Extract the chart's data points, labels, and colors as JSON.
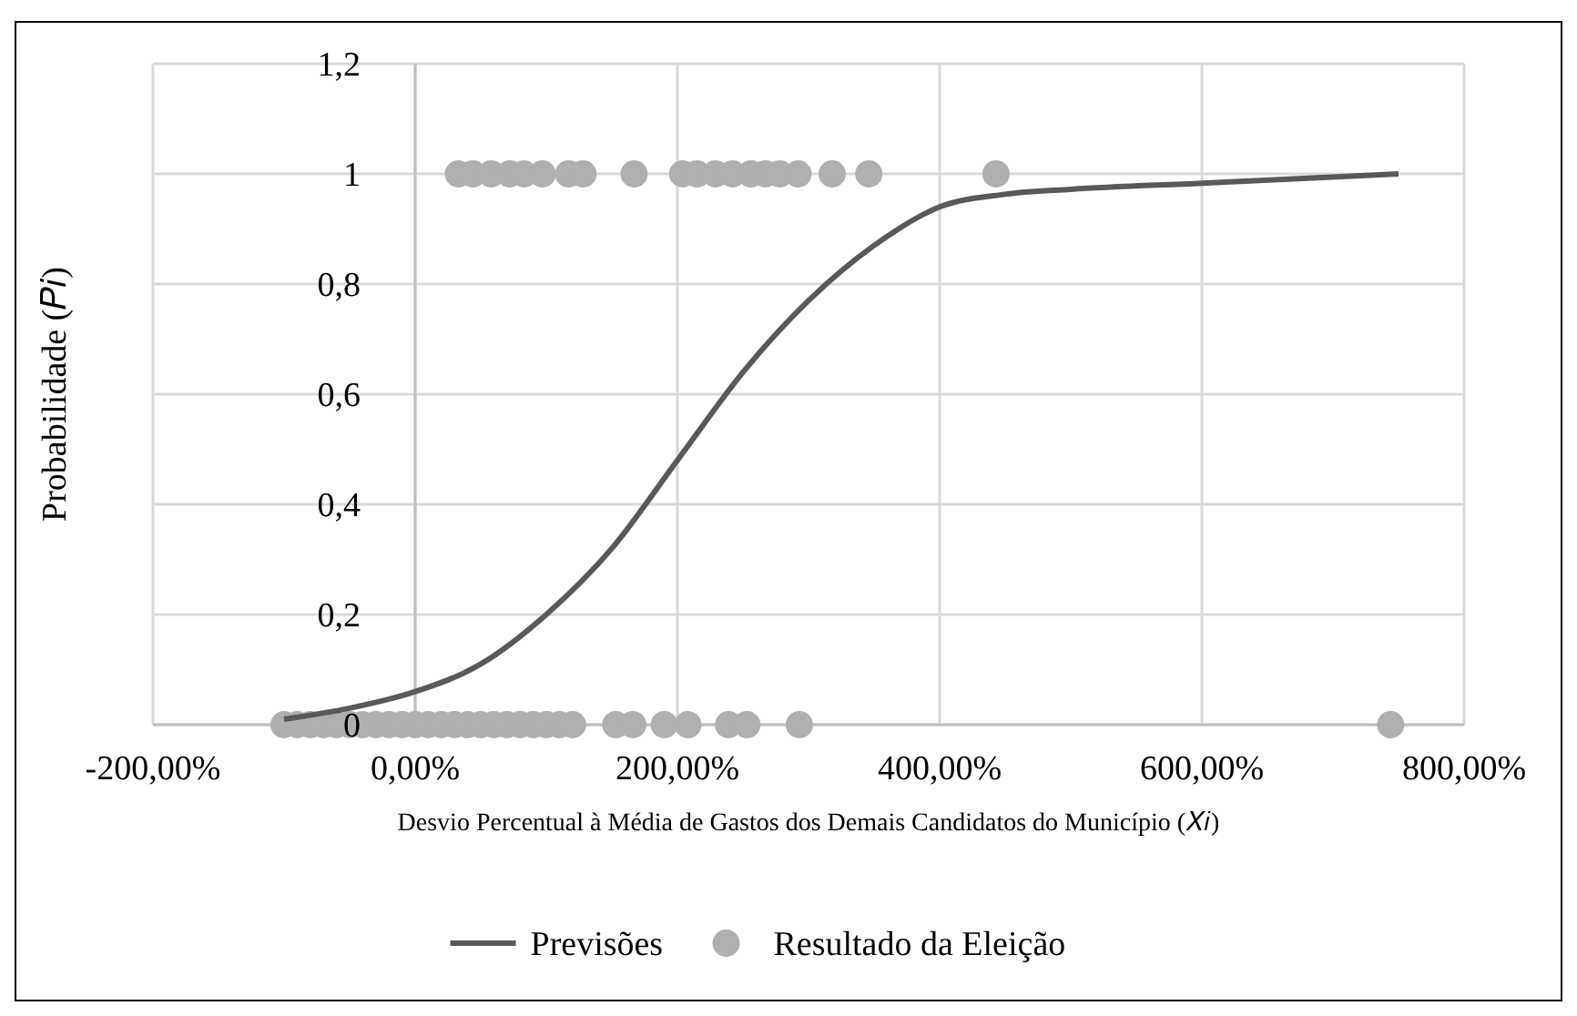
{
  "chart_data": {
    "type": "scatter",
    "xlabel": "Desvio Percentual à Média de Gastos dos Demais Candidatos do Município (𝑋𝑖)",
    "ylabel": "Probabilidade (𝑃𝑖)",
    "xlim": [
      -200,
      800
    ],
    "ylim": [
      0,
      1.2
    ],
    "xticks": [
      {
        "value": -200,
        "label": "-200,00%"
      },
      {
        "value": 0,
        "label": "0,00%"
      },
      {
        "value": 200,
        "label": "200,00%"
      },
      {
        "value": 400,
        "label": "400,00%"
      },
      {
        "value": 600,
        "label": "600,00%"
      },
      {
        "value": 800,
        "label": "800,00%"
      }
    ],
    "yticks": [
      {
        "value": 0,
        "label": "0"
      },
      {
        "value": 0.2,
        "label": "0,2"
      },
      {
        "value": 0.4,
        "label": "0,4"
      },
      {
        "value": 0.6,
        "label": "0,6"
      },
      {
        "value": 0.8,
        "label": "0,8"
      },
      {
        "value": 1,
        "label": "1"
      },
      {
        "value": 1.2,
        "label": "1,2"
      }
    ],
    "grid": true,
    "legend": "bottom",
    "series": [
      {
        "name": "Previsões",
        "type": "line",
        "color": "#595959",
        "marker": "none",
        "x": [
          -100,
          -50,
          0,
          50,
          100,
          150,
          200,
          250,
          300,
          350,
          400,
          450,
          500,
          600,
          750
        ],
        "values": [
          0.01,
          0.03,
          0.06,
          0.11,
          0.2,
          0.32,
          0.48,
          0.64,
          0.77,
          0.87,
          0.94,
          0.963,
          0.972,
          0.983,
          1.0
        ]
      },
      {
        "name": "Resultado da Eleição",
        "color": "#afafaf",
        "marker": "circle",
        "x": [
          33,
          44,
          58,
          72,
          83,
          97,
          117,
          128,
          167,
          204,
          215,
          229,
          242,
          256,
          267,
          278,
          292,
          318,
          346,
          443,
          -100,
          -90,
          -80,
          -70,
          -60,
          -50,
          -40,
          -30,
          -20,
          -10,
          0,
          10,
          20,
          30,
          40,
          50,
          60,
          70,
          80,
          90,
          100,
          110,
          120,
          153,
          166,
          190,
          208,
          239,
          253,
          293,
          744
        ],
        "values": [
          1,
          1,
          1,
          1,
          1,
          1,
          1,
          1,
          1,
          1,
          1,
          1,
          1,
          1,
          1,
          1,
          1,
          1,
          1,
          1,
          0,
          0,
          0,
          0,
          0,
          0,
          0,
          0,
          0,
          0,
          0,
          0,
          0,
          0,
          0,
          0,
          0,
          0,
          0,
          0,
          0,
          0,
          0,
          0,
          0,
          0,
          0,
          0,
          0,
          0,
          0
        ]
      }
    ]
  }
}
